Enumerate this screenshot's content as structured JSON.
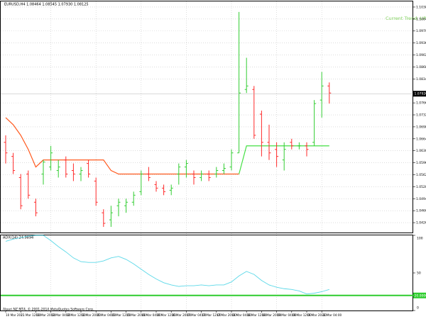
{
  "chart_data": [
    {
      "type": "ohlc",
      "title": "EURUSD,H4  1.08464 1.08545 1.07930 1.08125",
      "annotation": "Current Trend: UP",
      "annotation_color": "#7fd35a",
      "categories": [
        "10 Mar 2021",
        null,
        "11 Mar 12:00",
        null,
        "11 Mar 20:00",
        null,
        "12 Mar 04:00",
        null,
        "12 Mar 12:00",
        null,
        "12 Mar 20:00",
        null,
        "15 Mar 04:00",
        null,
        "15 Mar 12:00",
        null,
        "15 Mar 20:00",
        null,
        "16 Mar 04:00",
        null,
        "16 Mar 12:00",
        null,
        "16 Mar 20:00",
        null,
        "17 Mar 04:00",
        null,
        "17 Mar 12:00",
        null,
        "17 Mar 20:00",
        null,
        "18 Mar 04:00",
        null,
        "18 Mar 12:00",
        null,
        "18 Mar 20:00",
        null,
        "19 Mar 04:00",
        null,
        "19 Mar 12:00",
        null,
        "19 Mar 20:00",
        null,
        "22 Mar 04:00",
        null
      ],
      "open": [
        1.0654,
        1.0614,
        1.0554,
        1.0564,
        1.0484,
        1.0564,
        1.0584,
        1.0574,
        1.0604,
        1.0574,
        1.0564,
        1.0594,
        1.0544,
        1.0454,
        1.0434,
        1.0474,
        1.0474,
        1.0484,
        1.0514,
        1.0564,
        1.0534,
        1.0524,
        1.0518,
        1.0564,
        1.0584,
        1.0564,
        1.0554,
        1.0564,
        1.0564,
        1.0574,
        1.0584,
        1.0624,
        1.0804,
        1.0804,
        1.0734,
        1.0654,
        1.0634,
        1.0604,
        1.0654,
        1.0644,
        1.0644,
        1.0654,
        1.0774,
        1.0814
      ],
      "high": [
        1.0674,
        1.0624,
        1.0564,
        1.0574,
        1.0494,
        1.0604,
        1.0644,
        1.0604,
        1.0614,
        1.0594,
        1.0584,
        1.0604,
        1.0554,
        1.0464,
        1.0474,
        1.0494,
        1.0494,
        1.0514,
        1.0574,
        1.0584,
        1.0544,
        1.0534,
        1.0534,
        1.0594,
        1.0604,
        1.0574,
        1.0574,
        1.0574,
        1.0584,
        1.0594,
        1.0634,
        1.1024,
        1.0894,
        1.0814,
        1.0744,
        1.0704,
        1.0654,
        1.0654,
        1.0664,
        1.0654,
        1.0654,
        1.0774,
        1.0854,
        1.0824
      ],
      "low": [
        1.0594,
        1.0564,
        1.0464,
        1.0494,
        1.0444,
        1.0534,
        1.0574,
        1.0554,
        1.0554,
        1.0544,
        1.0544,
        1.0554,
        1.0474,
        1.0414,
        1.0414,
        1.0444,
        1.0454,
        1.0474,
        1.0504,
        1.0544,
        1.0514,
        1.0504,
        1.0504,
        1.0534,
        1.0554,
        1.0534,
        1.0544,
        1.0544,
        1.0554,
        1.0564,
        1.0574,
        1.0624,
        1.0794,
        1.0664,
        1.0614,
        1.0604,
        1.0584,
        1.0574,
        1.0634,
        1.0634,
        1.0614,
        1.0644,
        1.0724,
        1.0764
      ],
      "close": [
        1.0624,
        1.0574,
        1.0474,
        1.0504,
        1.0454,
        1.0598,
        1.0624,
        1.0584,
        1.0564,
        1.0564,
        1.0574,
        1.0564,
        1.0484,
        1.0424,
        1.0454,
        1.0484,
        1.0484,
        1.0504,
        1.0564,
        1.0554,
        1.0524,
        1.0514,
        1.0524,
        1.0584,
        1.0594,
        1.0554,
        1.0564,
        1.0554,
        1.0574,
        1.058,
        1.0624,
        1.0794,
        1.0814,
        1.0674,
        1.0654,
        1.0624,
        1.0614,
        1.0634,
        1.0644,
        1.0644,
        1.0634,
        1.0764,
        1.0814,
        1.0794
      ],
      "up_color": "#32cd32",
      "down_color": "#ff2a2a",
      "lines": [
        {
          "color": "#ff5a1f",
          "values": [
            1.0724,
            1.0704,
            1.0674,
            1.0634,
            1.0584,
            1.0604,
            1.0604,
            1.0604,
            1.0604,
            1.0604,
            1.0604,
            1.0604,
            1.0604,
            1.0604,
            1.0574,
            1.0564,
            1.0564,
            1.0564,
            1.0564,
            1.0564,
            1.0564,
            1.0564,
            1.0564,
            1.0564,
            1.0564,
            1.0564,
            1.0564,
            1.0564,
            1.0564,
            1.0564,
            1.0564,
            1.0564,
            null,
            null,
            null,
            null,
            null,
            null,
            null,
            null,
            null,
            null,
            null,
            null
          ]
        },
        {
          "color": "#44e044",
          "values": [
            null,
            null,
            null,
            null,
            null,
            null,
            null,
            null,
            null,
            null,
            null,
            null,
            null,
            null,
            null,
            null,
            null,
            null,
            null,
            null,
            null,
            null,
            null,
            null,
            null,
            null,
            null,
            null,
            null,
            null,
            null,
            1.0564,
            1.0644,
            1.0644,
            1.0644,
            1.0644,
            1.0644,
            1.0644,
            1.0644,
            1.0644,
            1.0644,
            1.0644,
            1.0644,
            1.0644
          ]
        }
      ],
      "ylim": [
        1.0398,
        1.1054
      ],
      "yticks": [
        {
          "value": 1.1038,
          "label": "1.10380"
        },
        {
          "value": 1.1004,
          "label": "1.10040"
        },
        {
          "value": 1.097,
          "label": "1.09700"
        },
        {
          "value": 1.0936,
          "label": "1.09360"
        },
        {
          "value": 1.0902,
          "label": "1.09020"
        },
        {
          "value": 1.0868,
          "label": "1.08680"
        },
        {
          "value": 1.0834,
          "label": "1.08340"
        },
        {
          "value": 1.0766,
          "label": "1.07660"
        },
        {
          "value": 1.0732,
          "label": "1.07320"
        },
        {
          "value": 1.0698,
          "label": "1.06980"
        },
        {
          "value": 1.0664,
          "label": "1.06640"
        },
        {
          "value": 1.063,
          "label": "1.06300"
        },
        {
          "value": 1.0596,
          "label": "1.05960"
        },
        {
          "value": 1.0562,
          "label": "1.05620"
        },
        {
          "value": 1.0528,
          "label": "1.05280"
        },
        {
          "value": 1.0494,
          "label": "1.04940"
        },
        {
          "value": 1.046,
          "label": "1.04600"
        },
        {
          "value": 1.0426,
          "label": "1.04260"
        }
      ],
      "current_price": {
        "value": 1.0792,
        "label": "1.07920"
      },
      "grid": true
    },
    {
      "type": "line",
      "title": "ADX(14) 24.9894",
      "copyright": "Alpari NZ MT4, © 2001-2014 MetaQuotes Software Corp.",
      "color": "#5ad8e8",
      "values": [
        92,
        95,
        97,
        99,
        100,
        100,
        93,
        85,
        78,
        70,
        65,
        64,
        64,
        66,
        70,
        72,
        68,
        62,
        55,
        48,
        42,
        37,
        34,
        32,
        33,
        33,
        34,
        33,
        34,
        34,
        38,
        46,
        52,
        48,
        40,
        34,
        31,
        29,
        28,
        26,
        22,
        23,
        25,
        28
      ],
      "level": {
        "value": 20,
        "label": "20.0000"
      },
      "level_color": "#2ecc2e",
      "ylim": [
        0,
        100
      ],
      "yticks": [
        0,
        50,
        100
      ]
    }
  ]
}
